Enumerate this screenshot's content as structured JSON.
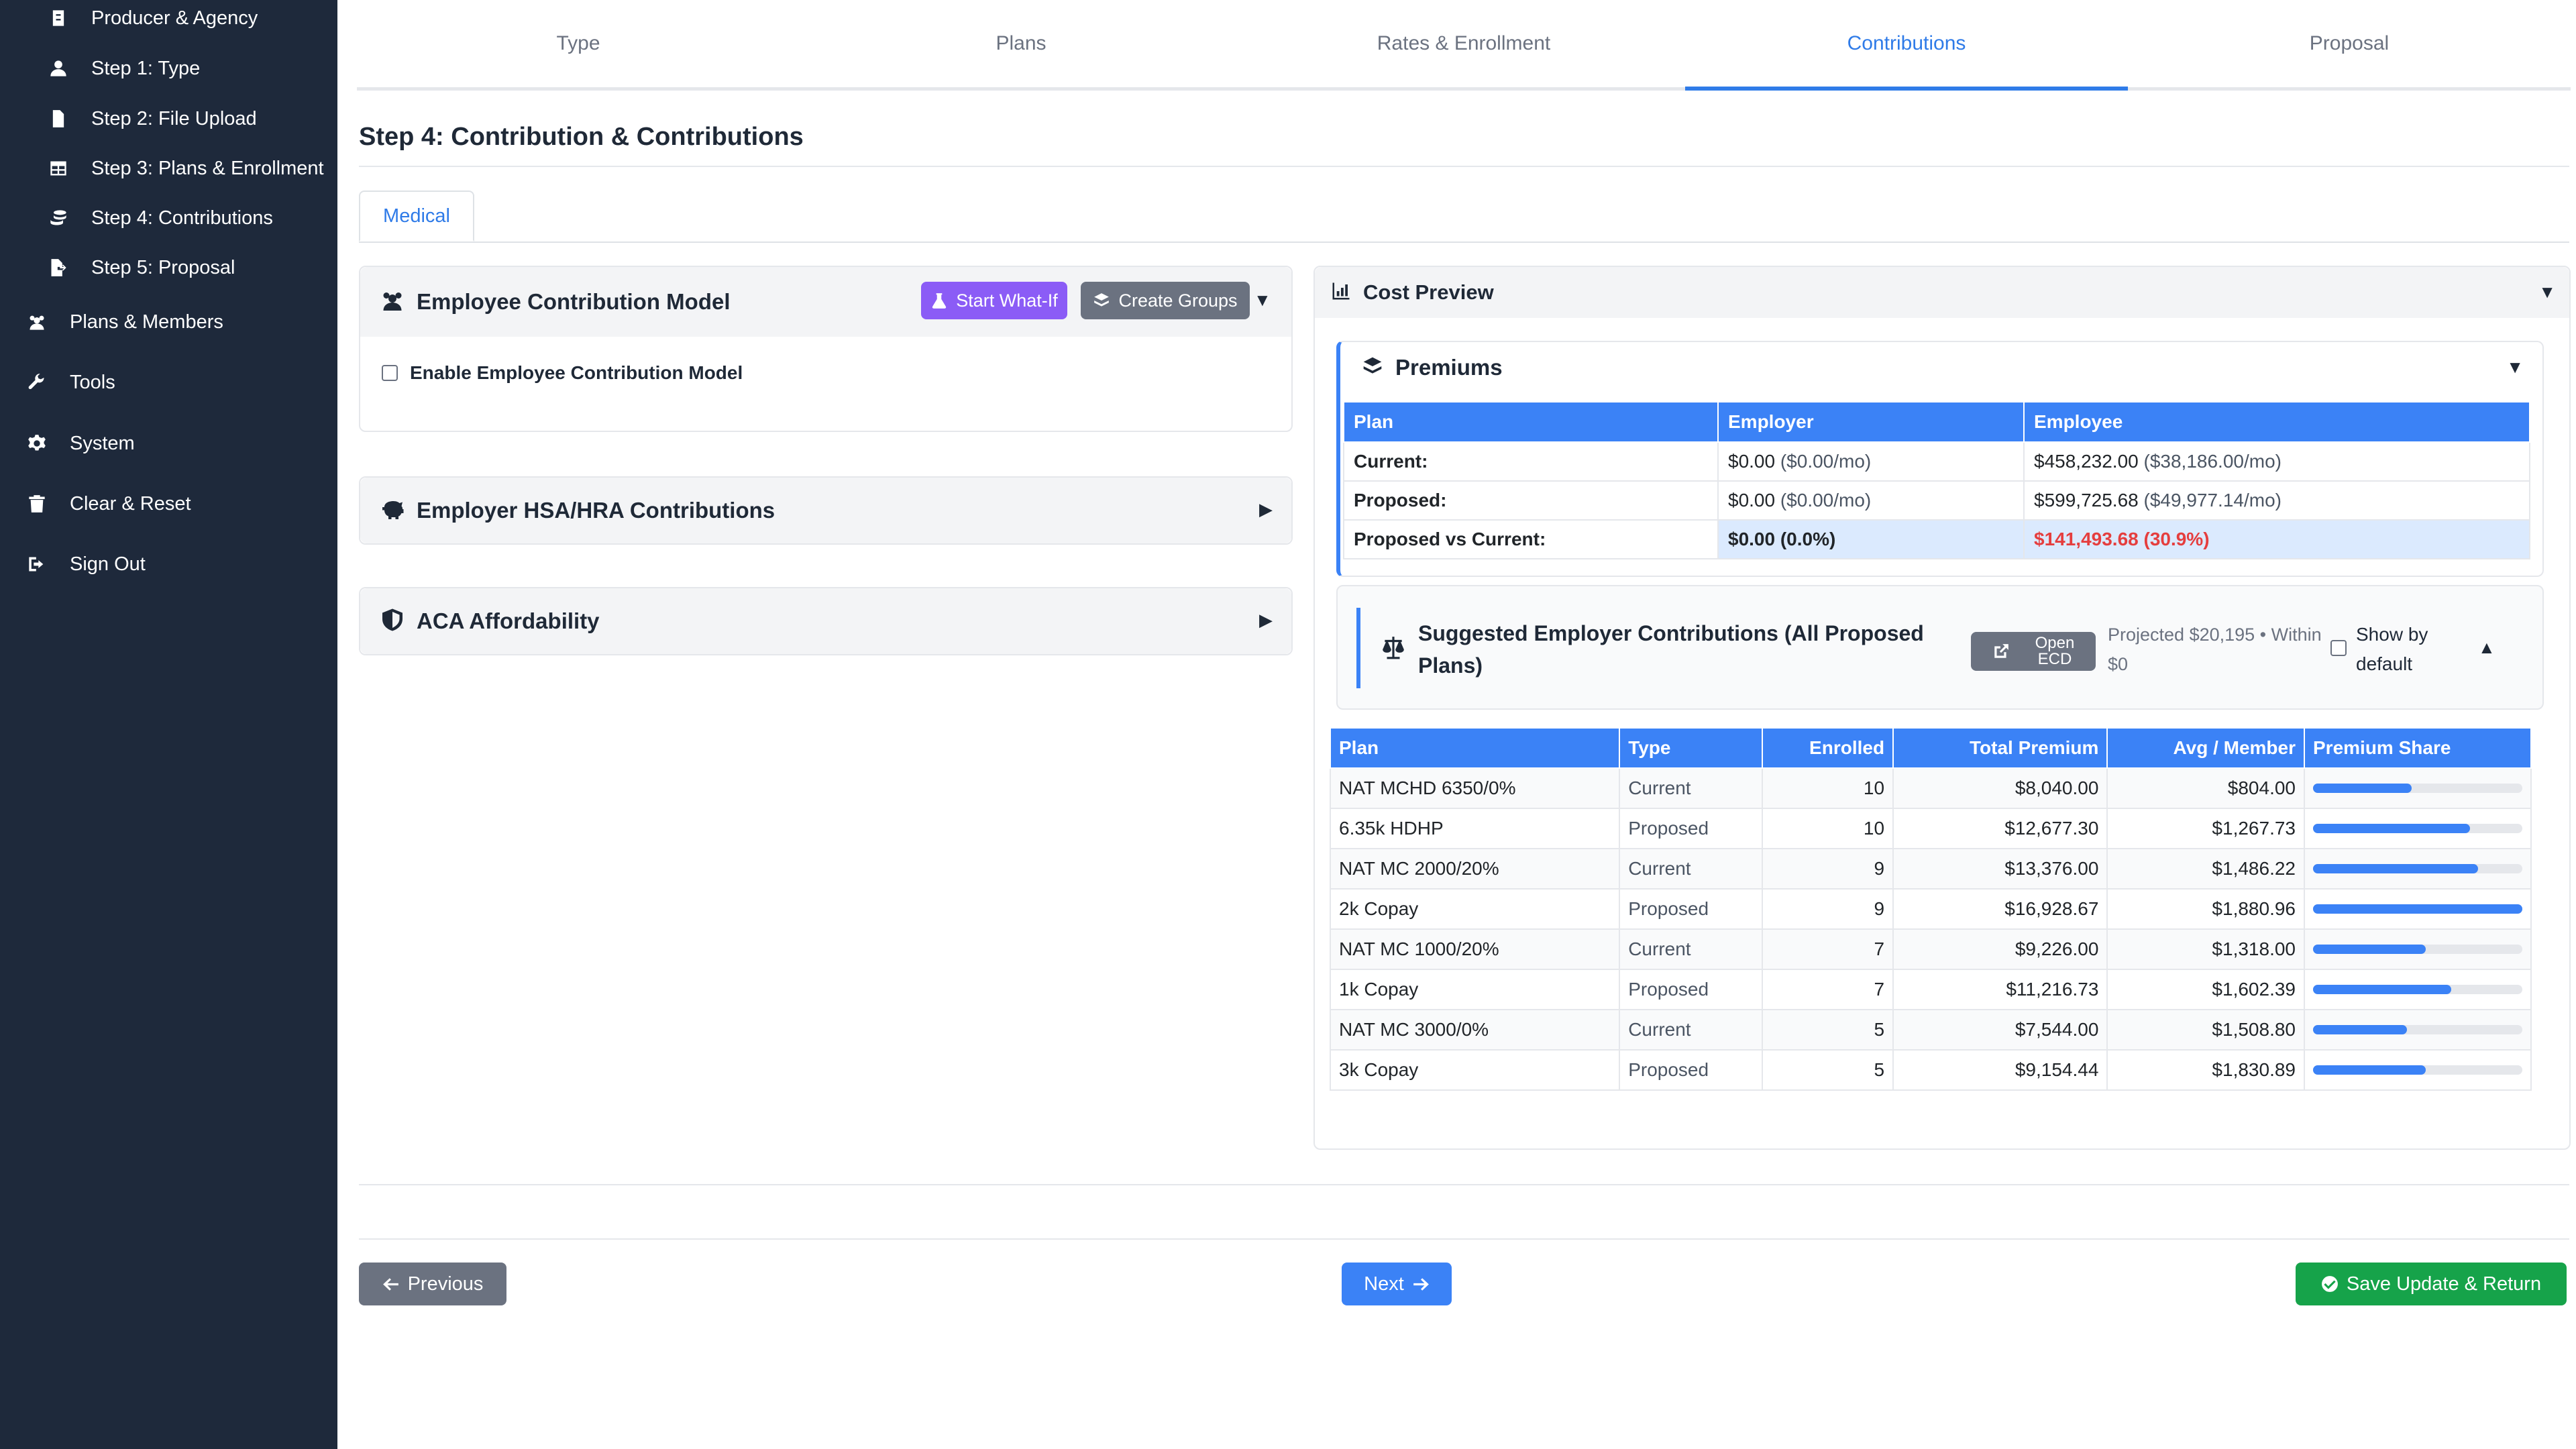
{
  "sidebar": {
    "items": [
      {
        "label": "Producer & Agency",
        "icon": "badge-icon"
      },
      {
        "label": "Step 1: Type",
        "icon": "user-icon"
      },
      {
        "label": "Step 2: File Upload",
        "icon": "file-icon"
      },
      {
        "label": "Step 3: Plans & Enrollment",
        "icon": "table-icon"
      },
      {
        "label": "Step 4: Contributions",
        "icon": "coins-icon"
      },
      {
        "label": "Step 5: Proposal",
        "icon": "file-export-icon"
      },
      {
        "label": "Plans & Members",
        "icon": "users-icon"
      },
      {
        "label": "Tools",
        "icon": "wrench-icon"
      },
      {
        "label": "System",
        "icon": "gear-icon"
      },
      {
        "label": "Clear & Reset",
        "icon": "trash-icon"
      },
      {
        "label": "Sign Out",
        "icon": "sign-out-icon"
      }
    ]
  },
  "tabs": [
    {
      "label": "Type"
    },
    {
      "label": "Plans"
    },
    {
      "label": "Rates & Enrollment"
    },
    {
      "label": "Contributions",
      "active": true
    },
    {
      "label": "Proposal"
    }
  ],
  "page_title": "Step 4: Contribution & Contributions",
  "subtab": "Medical",
  "ecm": {
    "title": "Employee Contribution Model",
    "whatif_label": "Start What-If",
    "groups_label": "Create Groups",
    "enable_label": "Enable Employee Contribution Model"
  },
  "hsa": {
    "title": "Employer HSA/HRA Contributions"
  },
  "aca": {
    "title": "ACA Affordability"
  },
  "cost_preview": {
    "title": "Cost Preview",
    "premiums_title": "Premiums",
    "headers": [
      "Plan",
      "Employer",
      "Employee"
    ],
    "rows": [
      {
        "label": "Current:",
        "employer": "$0.00",
        "employer_mo": "($0.00/mo)",
        "employee": "$458,232.00",
        "employee_mo": "($38,186.00/mo)"
      },
      {
        "label": "Proposed:",
        "employer": "$0.00",
        "employer_mo": "($0.00/mo)",
        "employee": "$599,725.68",
        "employee_mo": "($49,977.14/mo)"
      },
      {
        "label": "Proposed vs Current:",
        "employer": "$0.00 (0.0%)",
        "employee": "$141,493.68 (30.9%)"
      }
    ]
  },
  "suggested": {
    "title_line1": "Suggested Employer Contributions (All Proposed",
    "title_line2": "Plans)",
    "open_ecd_line1": "Open",
    "open_ecd_line2": "ECD",
    "projected_line1": "Projected $20,195 • Within",
    "projected_line2": "$0",
    "show_default_line1": "Show by",
    "show_default_line2": "default"
  },
  "plan_table": {
    "headers": [
      "Plan",
      "Type",
      "Enrolled",
      "Total Premium",
      "Avg / Member",
      "Premium Share"
    ],
    "rows": [
      {
        "plan": "NAT MCHD 6350/0%",
        "type": "Current",
        "enrolled": "10",
        "total": "$8,040.00",
        "avg": "$804.00",
        "share": 0.47
      },
      {
        "plan": "6.35k HDHP",
        "type": "Proposed",
        "enrolled": "10",
        "total": "$12,677.30",
        "avg": "$1,267.73",
        "share": 0.75
      },
      {
        "plan": "NAT MC 2000/20%",
        "type": "Current",
        "enrolled": "9",
        "total": "$13,376.00",
        "avg": "$1,486.22",
        "share": 0.79
      },
      {
        "plan": "2k Copay",
        "type": "Proposed",
        "enrolled": "9",
        "total": "$16,928.67",
        "avg": "$1,880.96",
        "share": 1.0
      },
      {
        "plan": "NAT MC 1000/20%",
        "type": "Current",
        "enrolled": "7",
        "total": "$9,226.00",
        "avg": "$1,318.00",
        "share": 0.54
      },
      {
        "plan": "1k Copay",
        "type": "Proposed",
        "enrolled": "7",
        "total": "$11,216.73",
        "avg": "$1,602.39",
        "share": 0.66
      },
      {
        "plan": "NAT MC 3000/0%",
        "type": "Current",
        "enrolled": "5",
        "total": "$7,544.00",
        "avg": "$1,508.80",
        "share": 0.45
      },
      {
        "plan": "3k Copay",
        "type": "Proposed",
        "enrolled": "5",
        "total": "$9,154.44",
        "avg": "$1,830.89",
        "share": 0.54
      }
    ]
  },
  "footer": {
    "previous_label": "Previous",
    "next_label": "Next",
    "save_label": "Save Update & Return"
  },
  "colors": {
    "sidebar_bg": "#1e293b",
    "accent": "#2f7be8",
    "table_header": "#3b82f6",
    "whatif": "#8b5cf6",
    "groups": "#6b7280",
    "save": "#16a34a",
    "negative": "#e53e3e"
  }
}
